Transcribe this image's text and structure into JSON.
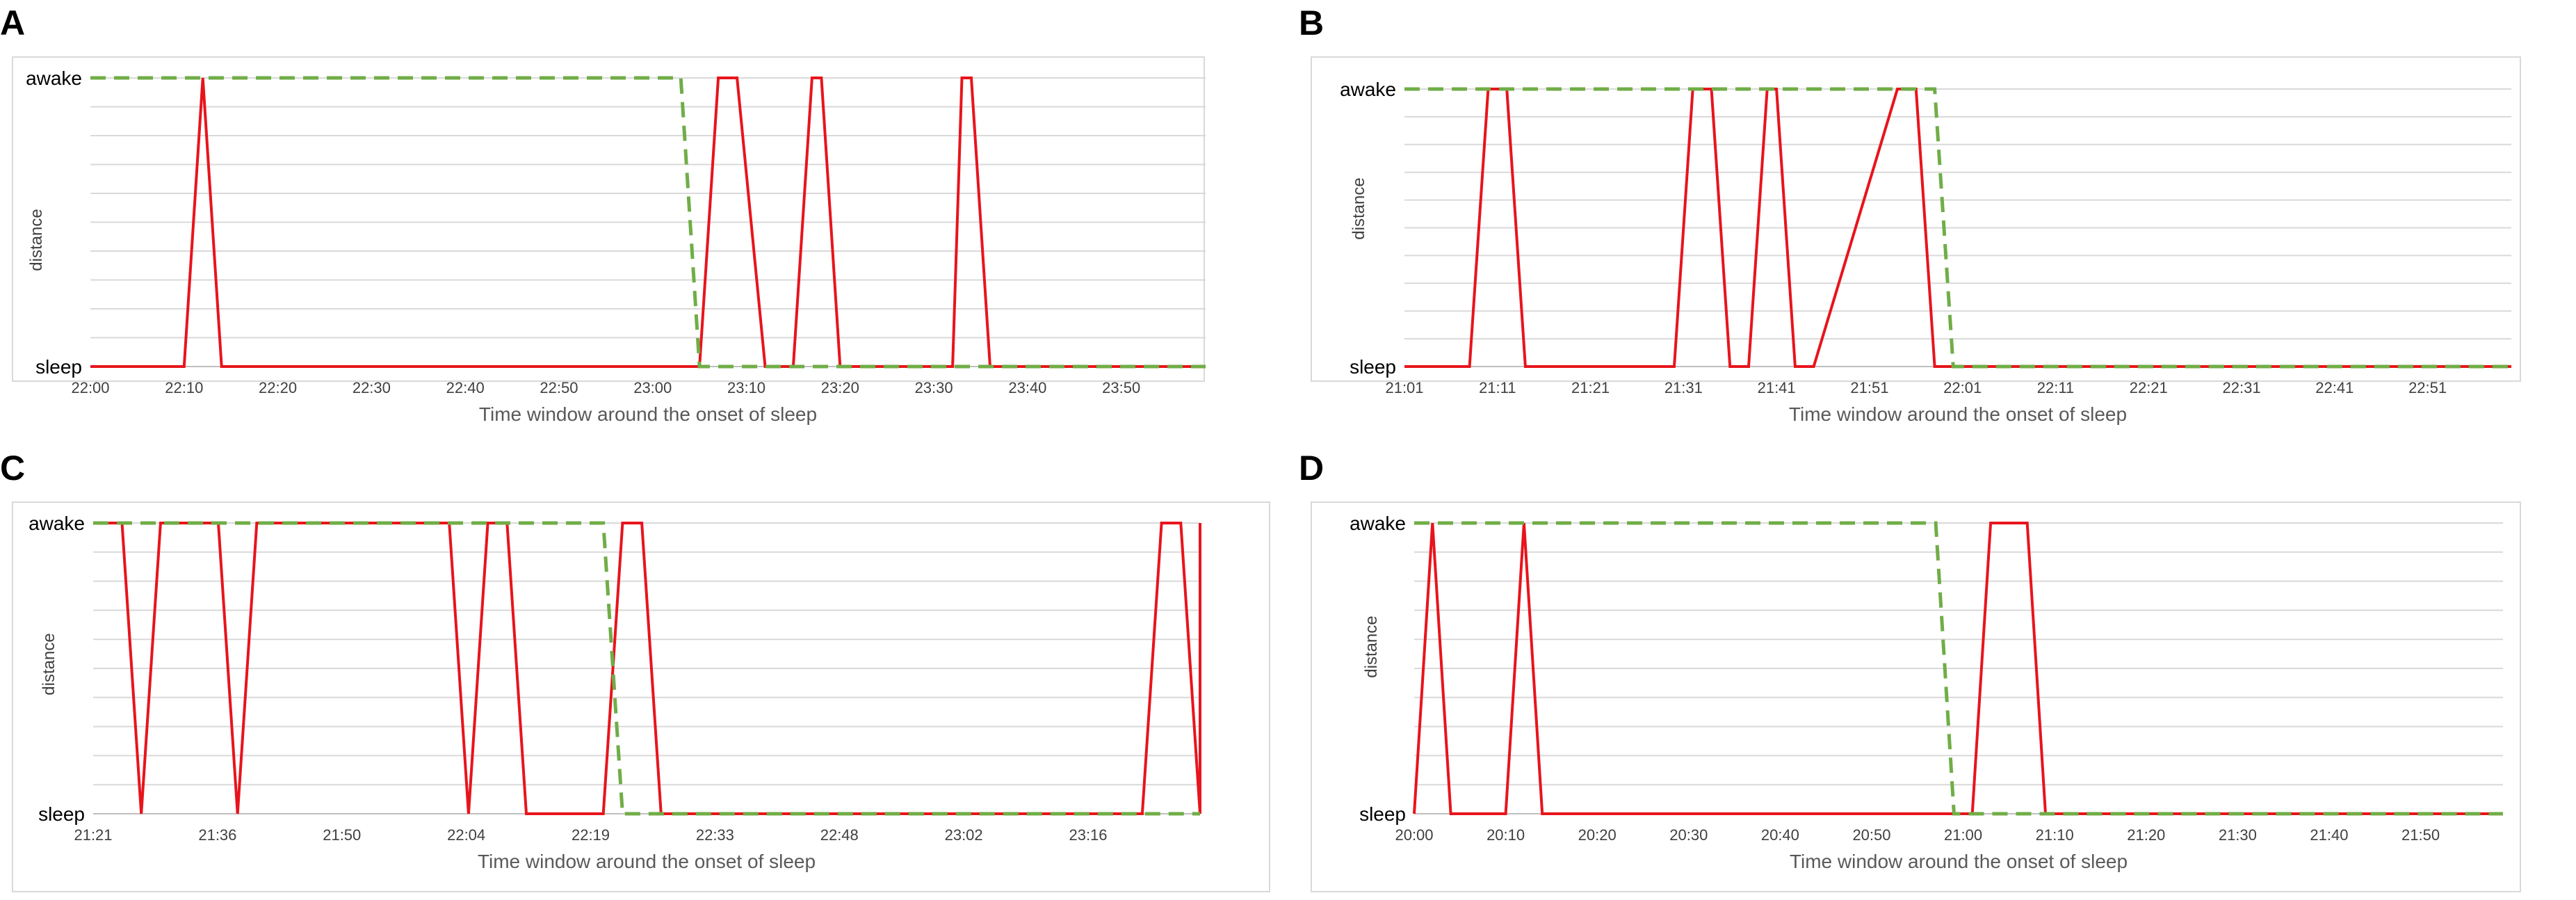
{
  "chart_data": [
    {
      "panel": "A",
      "type": "line",
      "xlabel": "Time window around the onset of sleep",
      "ylabel": "distance",
      "y_top_label": "awake",
      "y_bottom_label": "sleep",
      "x_ticks": [
        "22:00",
        "22:10",
        "22:20",
        "22:30",
        "22:40",
        "22:50",
        "23:00",
        "23:10",
        "23:20",
        "23:30",
        "23:40",
        "23:50"
      ],
      "x_range_minutes": [
        0,
        119
      ],
      "ylim": [
        0,
        1
      ],
      "grid": "horizontal",
      "series": [
        {
          "color": "#e8141c",
          "style": "solid",
          "x": [
            0,
            10,
            12,
            14,
            65,
            67,
            69,
            72,
            75,
            77,
            78,
            80,
            92,
            93,
            94,
            96,
            119
          ],
          "y": [
            0,
            0,
            1,
            0,
            0,
            1,
            1,
            0,
            0,
            1,
            1,
            0,
            0,
            1,
            1,
            0,
            0
          ]
        },
        {
          "color": "#70ad47",
          "style": "dashed",
          "x": [
            0,
            63,
            65,
            119
          ],
          "y": [
            1,
            1,
            0,
            0
          ]
        }
      ]
    },
    {
      "panel": "B",
      "type": "line",
      "xlabel": "Time window around the onset of sleep",
      "ylabel": "distance",
      "y_top_label": "awake",
      "y_bottom_label": "sleep",
      "x_ticks": [
        "21:01",
        "21:11",
        "21:21",
        "21:31",
        "21:41",
        "21:51",
        "22:01",
        "22:11",
        "22:21",
        "22:31",
        "22:41",
        "22:51"
      ],
      "x_range_minutes": [
        0,
        119
      ],
      "ylim": [
        0,
        1
      ],
      "grid": "horizontal",
      "series": [
        {
          "color": "#e8141c",
          "style": "solid",
          "x": [
            0,
            7,
            9,
            11,
            13,
            29,
            31,
            33,
            35,
            37,
            39,
            40,
            42,
            44,
            53,
            55,
            57,
            119
          ],
          "y": [
            0,
            0,
            1,
            1,
            0,
            0,
            1,
            1,
            0,
            0,
            1,
            1,
            0,
            0,
            1,
            1,
            0,
            0
          ]
        },
        {
          "color": "#70ad47",
          "style": "dashed",
          "x": [
            0,
            57,
            59,
            119
          ],
          "y": [
            1,
            1,
            0,
            0
          ]
        }
      ]
    },
    {
      "panel": "C",
      "type": "line",
      "xlabel": "Time window around the onset of sleep",
      "ylabel": "distance",
      "y_top_label": "awake",
      "y_bottom_label": "sleep",
      "x_ticks": [
        "21:21",
        "21:36",
        "21:50",
        "22:04",
        "22:19",
        "22:33",
        "22:48",
        "23:02",
        "23:16"
      ],
      "x_range_minutes": [
        0,
        115
      ],
      "ylim": [
        0,
        1
      ],
      "grid": "horizontal",
      "series": [
        {
          "color": "#e8141c",
          "style": "solid",
          "x": [
            0,
            3,
            5,
            7,
            13,
            15,
            17,
            37,
            39,
            41,
            43,
            45,
            47,
            53,
            55,
            57,
            59,
            63,
            109,
            111,
            113,
            117,
            119,
            121,
            123,
            125,
            127,
            129,
            131,
            133,
            135,
            137,
            147
          ],
          "y": [
            1,
            1,
            0,
            1,
            1,
            0,
            1,
            1,
            0,
            1,
            1,
            0,
            0,
            0,
            1,
            1,
            0,
            0,
            0,
            1,
            1,
            0,
            0,
            1,
            1,
            0,
            0,
            1,
            0,
            0,
            0,
            0,
            0
          ]
        },
        {
          "color": "#70ad47",
          "style": "dashed",
          "x": [
            0,
            53,
            55,
            115
          ],
          "y": [
            1,
            1,
            0,
            0
          ]
        }
      ]
    },
    {
      "panel": "D",
      "type": "line",
      "xlabel": "Time window around the onset of sleep",
      "ylabel": "distance",
      "y_top_label": "awake",
      "y_bottom_label": "sleep",
      "x_ticks": [
        "20:00",
        "20:10",
        "20:20",
        "20:30",
        "20:40",
        "20:50",
        "21:00",
        "21:10",
        "21:20",
        "21:30",
        "21:40",
        "21:50"
      ],
      "x_range_minutes": [
        0,
        119
      ],
      "ylim": [
        0,
        1
      ],
      "grid": "horizontal",
      "series": [
        {
          "color": "#e8141c",
          "style": "solid",
          "x": [
            0,
            2,
            4,
            10,
            12,
            14,
            61,
            63,
            67,
            69,
            119
          ],
          "y": [
            0,
            1,
            0,
            0,
            1,
            0,
            0,
            1,
            1,
            0,
            0
          ]
        },
        {
          "color": "#70ad47",
          "style": "dashed",
          "x": [
            0,
            57,
            59,
            119
          ],
          "y": [
            1,
            1,
            0,
            0
          ]
        }
      ]
    }
  ]
}
